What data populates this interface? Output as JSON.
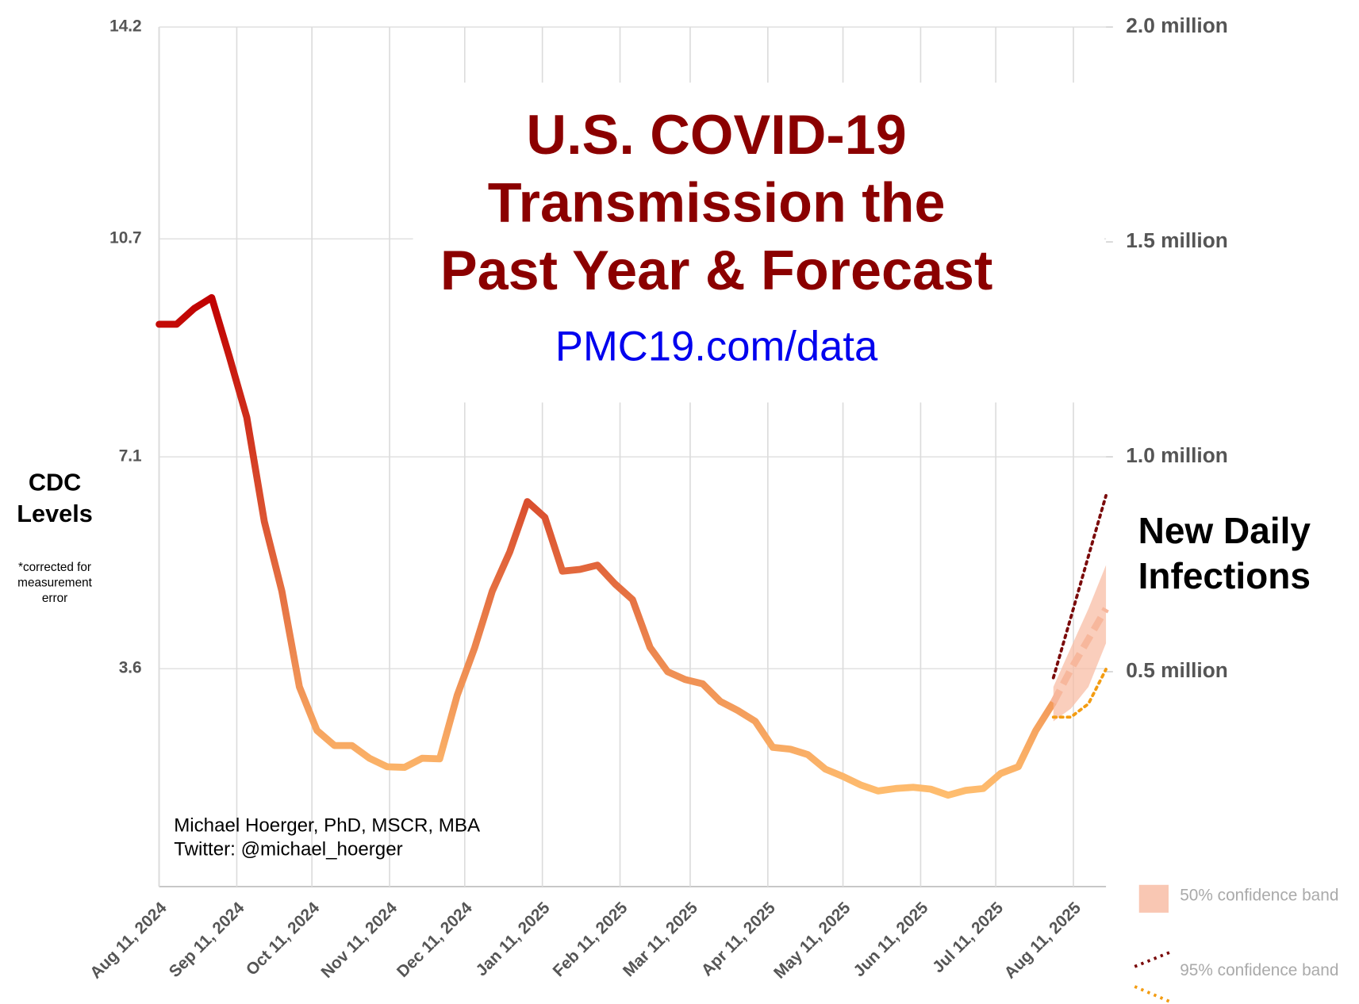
{
  "chart_data": {
    "type": "line",
    "title_lines": [
      "U.S. COVID-19",
      "Transmission the",
      "Past Year & Forecast"
    ],
    "subtitle": "PMC19.com/data",
    "y_label_lines": [
      "CDC",
      "Levels"
    ],
    "y_note_lines": [
      "*corrected for",
      "measurement",
      "error"
    ],
    "y2_label_lines": [
      "New Daily",
      "Infections"
    ],
    "credit_lines": [
      "Michael Hoerger, PhD, MSCR, MBA",
      "Twitter: @michael_hoerger"
    ],
    "xlim": [
      "2024-08-11",
      "2025-08-24"
    ],
    "xticks": [
      {
        "value": "2024-08-11",
        "label": "Aug 11, 2024"
      },
      {
        "value": "2024-09-11",
        "label": "Sep 11, 2024"
      },
      {
        "value": "2024-10-11",
        "label": "Oct 11, 2024"
      },
      {
        "value": "2024-11-11",
        "label": "Nov 11, 2024"
      },
      {
        "value": "2024-12-11",
        "label": "Dec 11, 2024"
      },
      {
        "value": "2025-01-11",
        "label": "Jan 11, 2025"
      },
      {
        "value": "2025-02-11",
        "label": "Feb 11, 2025"
      },
      {
        "value": "2025-03-11",
        "label": "Mar 11, 2025"
      },
      {
        "value": "2025-04-11",
        "label": "Apr 11, 2025"
      },
      {
        "value": "2025-05-11",
        "label": "May 11, 2025"
      },
      {
        "value": "2025-06-11",
        "label": "Jun 11, 2025"
      },
      {
        "value": "2025-07-11",
        "label": "Jul 11, 2025"
      },
      {
        "value": "2025-08-11",
        "label": "Aug 11, 2025"
      }
    ],
    "ylim": [
      0,
      14.2
    ],
    "yticks": [
      3.6,
      7.1,
      10.7,
      14.2
    ],
    "y2lim": [
      0,
      2000000
    ],
    "y2ticks": [
      {
        "value": 500000,
        "label": "0.5 million"
      },
      {
        "value": 1000000,
        "label": "1.0 million"
      },
      {
        "value": 1500000,
        "label": "1.5 million"
      },
      {
        "value": 2000000,
        "label": "2.0 million"
      }
    ],
    "grid": true,
    "series": [
      {
        "gradient": [
          "#c00000",
          "#ffbf70"
        ],
        "x": [
          "2024-08-11",
          "2024-08-18",
          "2024-08-25",
          "2024-09-01",
          "2024-09-08",
          "2024-09-15",
          "2024-09-22",
          "2024-09-29",
          "2024-10-06",
          "2024-10-13",
          "2024-10-20",
          "2024-10-27",
          "2024-11-03",
          "2024-11-10",
          "2024-11-17",
          "2024-11-24",
          "2024-12-01",
          "2024-12-08",
          "2024-12-15",
          "2024-12-22",
          "2024-12-29",
          "2025-01-05",
          "2025-01-12",
          "2025-01-19",
          "2025-01-26",
          "2025-02-02",
          "2025-02-09",
          "2025-02-16",
          "2025-02-23",
          "2025-03-02",
          "2025-03-09",
          "2025-03-16",
          "2025-03-23",
          "2025-03-30",
          "2025-04-06",
          "2025-04-13",
          "2025-04-20",
          "2025-04-27",
          "2025-05-04",
          "2025-05-11",
          "2025-05-18",
          "2025-05-25",
          "2025-06-01",
          "2025-06-08",
          "2025-06-15",
          "2025-06-22",
          "2025-06-29",
          "2025-07-06",
          "2025-07-13",
          "2025-07-20",
          "2025-07-27",
          "2025-08-03"
        ],
        "values": [
          9.29,
          9.29,
          9.55,
          9.73,
          8.76,
          7.75,
          6.03,
          4.88,
          3.3,
          2.58,
          2.33,
          2.33,
          2.12,
          1.98,
          1.97,
          2.12,
          2.11,
          3.16,
          3.95,
          4.88,
          5.53,
          6.36,
          6.1,
          5.21,
          5.24,
          5.31,
          5.0,
          4.74,
          3.95,
          3.55,
          3.42,
          3.35,
          3.06,
          2.91,
          2.73,
          2.3,
          2.27,
          2.18,
          1.94,
          1.82,
          1.68,
          1.58,
          1.62,
          1.64,
          1.61,
          1.51,
          1.59,
          1.62,
          1.87,
          1.98,
          2.58,
          3.04
        ]
      }
    ],
    "forecast": {
      "x": [
        "2025-08-03",
        "2025-08-10",
        "2025-08-17",
        "2025-08-24"
      ],
      "center": [
        3.04,
        3.59,
        4.09,
        4.59
      ],
      "color": "#f7b79c",
      "bands": [
        {
          "name": "50% confidence band",
          "color": "#f8b9a0",
          "low": [
            2.73,
            2.94,
            3.3,
            4.02
          ],
          "high": [
            3.3,
            3.95,
            4.59,
            5.31
          ]
        },
        {
          "name": "95% confidence band",
          "colors": [
            "#f39c12",
            "#7a0a0a"
          ],
          "low": [
            2.8,
            2.8,
            3.02,
            3.59
          ],
          "high": [
            3.45,
            4.45,
            5.46,
            6.46
          ]
        }
      ]
    }
  }
}
